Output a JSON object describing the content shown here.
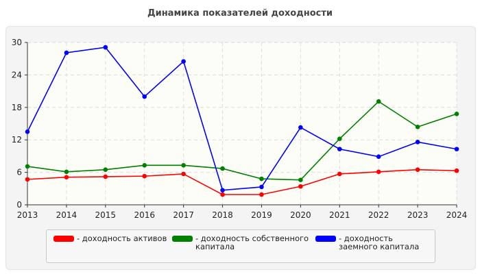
{
  "chart_data": {
    "type": "line",
    "title": "Динамика показателей доходности",
    "categories": [
      "2013",
      "2014",
      "2015",
      "2016",
      "2017",
      "2018",
      "2019",
      "2020",
      "2021",
      "2022",
      "2023",
      "2024"
    ],
    "ylim": [
      0,
      30
    ],
    "yticks": [
      0,
      6,
      12,
      18,
      24,
      30
    ],
    "grid": true,
    "legend_position": "bottom",
    "series": [
      {
        "name": "- доходность активов",
        "color": "#ff0000",
        "values": [
          4.7,
          5.1,
          5.2,
          5.3,
          5.7,
          1.9,
          1.9,
          3.4,
          5.7,
          6.1,
          6.5,
          6.3
        ]
      },
      {
        "name": "- доходность собственного капитала",
        "color": "#008000",
        "values": [
          7.1,
          6.1,
          6.5,
          7.3,
          7.3,
          6.7,
          4.8,
          4.6,
          12.2,
          19.1,
          14.4,
          16.8
        ]
      },
      {
        "name": "- доходность заемного капитала",
        "color": "#0000ff",
        "values": [
          13.5,
          28.1,
          29.1,
          20.0,
          26.5,
          2.7,
          3.3,
          14.3,
          10.3,
          8.9,
          11.6,
          10.3
        ]
      }
    ]
  }
}
